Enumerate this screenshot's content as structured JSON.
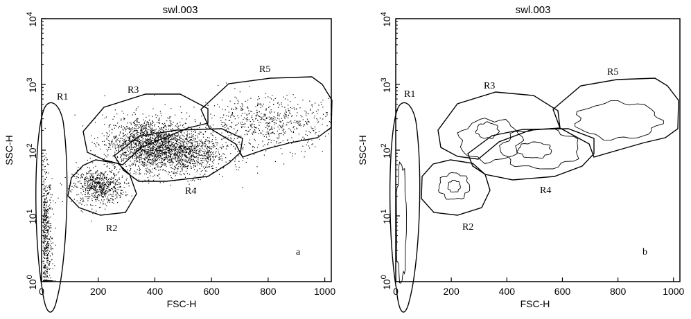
{
  "chart_data": [
    {
      "id": "a",
      "type": "scatter",
      "title": "swl.003",
      "panel_label": "a",
      "xlabel": "FSC-H",
      "ylabel": "SSC-H",
      "xlim": [
        0,
        1023
      ],
      "ylim_log10": [
        0,
        4
      ],
      "yscale": "log",
      "x_ticks": [
        0,
        200,
        400,
        600,
        800,
        1000
      ],
      "y_ticks": [
        {
          "base": "10",
          "exp": "0"
        },
        {
          "base": "10",
          "exp": "1"
        },
        {
          "base": "10",
          "exp": "2"
        },
        {
          "base": "10",
          "exp": "3"
        },
        {
          "base": "10",
          "exp": "4"
        }
      ],
      "populations": [
        {
          "region": "R1",
          "x_center": 25,
          "log10_y_center": 0.7,
          "x_spread": 15,
          "log10_y_spread": 0.5,
          "n": 500
        },
        {
          "region": "R2",
          "x_center": 200,
          "log10_y_center": 1.45,
          "x_spread": 45,
          "log10_y_spread": 0.13,
          "n": 650
        },
        {
          "region": "R3",
          "x_center": 370,
          "log10_y_center": 2.12,
          "x_spread": 75,
          "log10_y_spread": 0.2,
          "n": 1400
        },
        {
          "region": "R4",
          "x_center": 490,
          "log10_y_center": 1.95,
          "x_spread": 85,
          "log10_y_spread": 0.17,
          "n": 1100
        },
        {
          "region": "R5",
          "x_center": 800,
          "log10_y_center": 2.42,
          "x_spread": 120,
          "log10_y_spread": 0.2,
          "n": 650
        }
      ],
      "gates": [
        {
          "name": "R1",
          "label_pos": [
            80,
            2.7
          ]
        },
        {
          "name": "R2",
          "label_pos": [
            200,
            0.85
          ]
        },
        {
          "name": "R3",
          "label_pos": [
            250,
            2.85
          ]
        },
        {
          "name": "R4",
          "label_pos": [
            530,
            1.3
          ]
        },
        {
          "name": "R5",
          "label_pos": [
            780,
            3.1
          ]
        }
      ]
    },
    {
      "id": "b",
      "type": "contour",
      "title": "swl.003",
      "panel_label": "b",
      "xlabel": "FSC-H",
      "ylabel": "SSC-H",
      "xlim": [
        0,
        1023
      ],
      "ylim_log10": [
        0,
        4
      ],
      "yscale": "log",
      "x_ticks": [
        0,
        200,
        400,
        600,
        800,
        1000
      ],
      "y_ticks": [
        {
          "base": "10",
          "exp": "0"
        },
        {
          "base": "10",
          "exp": "1"
        },
        {
          "base": "10",
          "exp": "2"
        },
        {
          "base": "10",
          "exp": "3"
        },
        {
          "base": "10",
          "exp": "4"
        }
      ],
      "contour_levels": [
        {
          "x_center": 210,
          "log10_y_center": 1.45,
          "x_radius": 22,
          "log10_y_radius": 0.09
        },
        {
          "x_center": 210,
          "log10_y_center": 1.45,
          "x_radius": 55,
          "log10_y_radius": 0.2
        },
        {
          "x_center": 330,
          "log10_y_center": 2.3,
          "x_radius": 40,
          "log10_y_radius": 0.12
        },
        {
          "x_center": 340,
          "log10_y_center": 2.15,
          "x_radius": 110,
          "log10_y_radius": 0.32
        },
        {
          "x_center": 500,
          "log10_y_center": 2.0,
          "x_radius": 60,
          "log10_y_radius": 0.12
        },
        {
          "x_center": 520,
          "log10_y_center": 2.02,
          "x_radius": 140,
          "log10_y_radius": 0.3
        },
        {
          "x_center": 800,
          "log10_y_center": 2.45,
          "x_radius": 150,
          "log10_y_radius": 0.28
        },
        {
          "x_center": 20,
          "log10_y_center": 0.9,
          "x_radius": 18,
          "log10_y_radius": 0.9
        }
      ],
      "gates": [
        {
          "name": "R1",
          "label_pos": [
            80,
            2.7
          ]
        },
        {
          "name": "R2",
          "label_pos": [
            200,
            0.85
          ]
        },
        {
          "name": "R3",
          "label_pos": [
            270,
            2.95
          ]
        },
        {
          "name": "R4",
          "label_pos": [
            530,
            1.3
          ]
        },
        {
          "name": "R5",
          "label_pos": [
            780,
            3.1
          ]
        }
      ]
    }
  ]
}
